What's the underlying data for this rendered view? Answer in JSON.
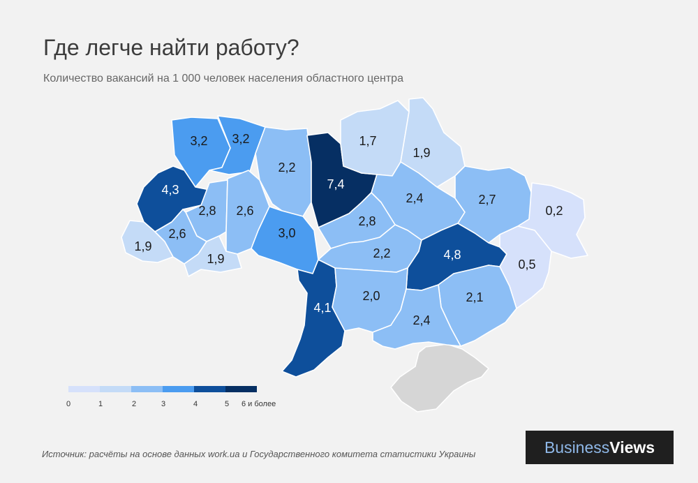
{
  "title": "Где легче найти работу?",
  "subtitle": "Количество вакансий  на 1 000 человек населения  областного центра",
  "source": "Источник:  расчёты на основе данных work.ua  и Государственного комитета статистики Украины",
  "logo": {
    "part1": "Business",
    "part2": "Views"
  },
  "colors": {
    "c0": "#d6e1fb",
    "c1": "#c4dbf7",
    "c2": "#8cbef5",
    "c3": "#4b9cf0",
    "c4": "#0e4f9b",
    "c5": "#083a78",
    "c6": "#062f63",
    "crimea": "#d6d6d6"
  },
  "legend": [
    "0",
    "1",
    "2",
    "3",
    "4",
    "5",
    "6 и более"
  ],
  "regions": [
    {
      "id": "volyn",
      "label": "3,2",
      "value": 3.2
    },
    {
      "id": "rivne",
      "label": "3,2",
      "value": 3.2
    },
    {
      "id": "lviv",
      "label": "4,3",
      "value": 4.3
    },
    {
      "id": "ternopil",
      "label": "2,8",
      "value": 2.8
    },
    {
      "id": "khmelnytskyi",
      "label": "2,6",
      "value": 2.6
    },
    {
      "id": "zakarpattia",
      "label": "1,9",
      "value": 1.9
    },
    {
      "id": "ivano-frankivsk",
      "label": "2,6",
      "value": 2.6
    },
    {
      "id": "chernivtsi",
      "label": "1,9",
      "value": 1.9
    },
    {
      "id": "zhytomyr",
      "label": "2,2",
      "value": 2.2
    },
    {
      "id": "vinnytsia",
      "label": "3,0",
      "value": 3.0
    },
    {
      "id": "kyiv",
      "label": "7,4",
      "value": 7.4
    },
    {
      "id": "chernihiv",
      "label": "1,7",
      "value": 1.7
    },
    {
      "id": "sumy",
      "label": "1,9",
      "value": 1.9
    },
    {
      "id": "poltava",
      "label": "2,4",
      "value": 2.4
    },
    {
      "id": "kharkiv",
      "label": "2,7",
      "value": 2.7
    },
    {
      "id": "luhansk",
      "label": "0,2",
      "value": 0.2
    },
    {
      "id": "cherkasy",
      "label": "2,8",
      "value": 2.8
    },
    {
      "id": "kirovohrad",
      "label": "2,2",
      "value": 2.2
    },
    {
      "id": "dnipropetrovsk",
      "label": "4,8",
      "value": 4.8
    },
    {
      "id": "donetsk",
      "label": "0,5",
      "value": 0.5
    },
    {
      "id": "odesa",
      "label": "4,1",
      "value": 4.1
    },
    {
      "id": "mykolaiv",
      "label": "2,0",
      "value": 2.0
    },
    {
      "id": "zaporizhzhia",
      "label": "2,1",
      "value": 2.1
    },
    {
      "id": "kherson",
      "label": "2,4",
      "value": 2.4
    },
    {
      "id": "crimea",
      "label": "",
      "value": null
    }
  ]
}
